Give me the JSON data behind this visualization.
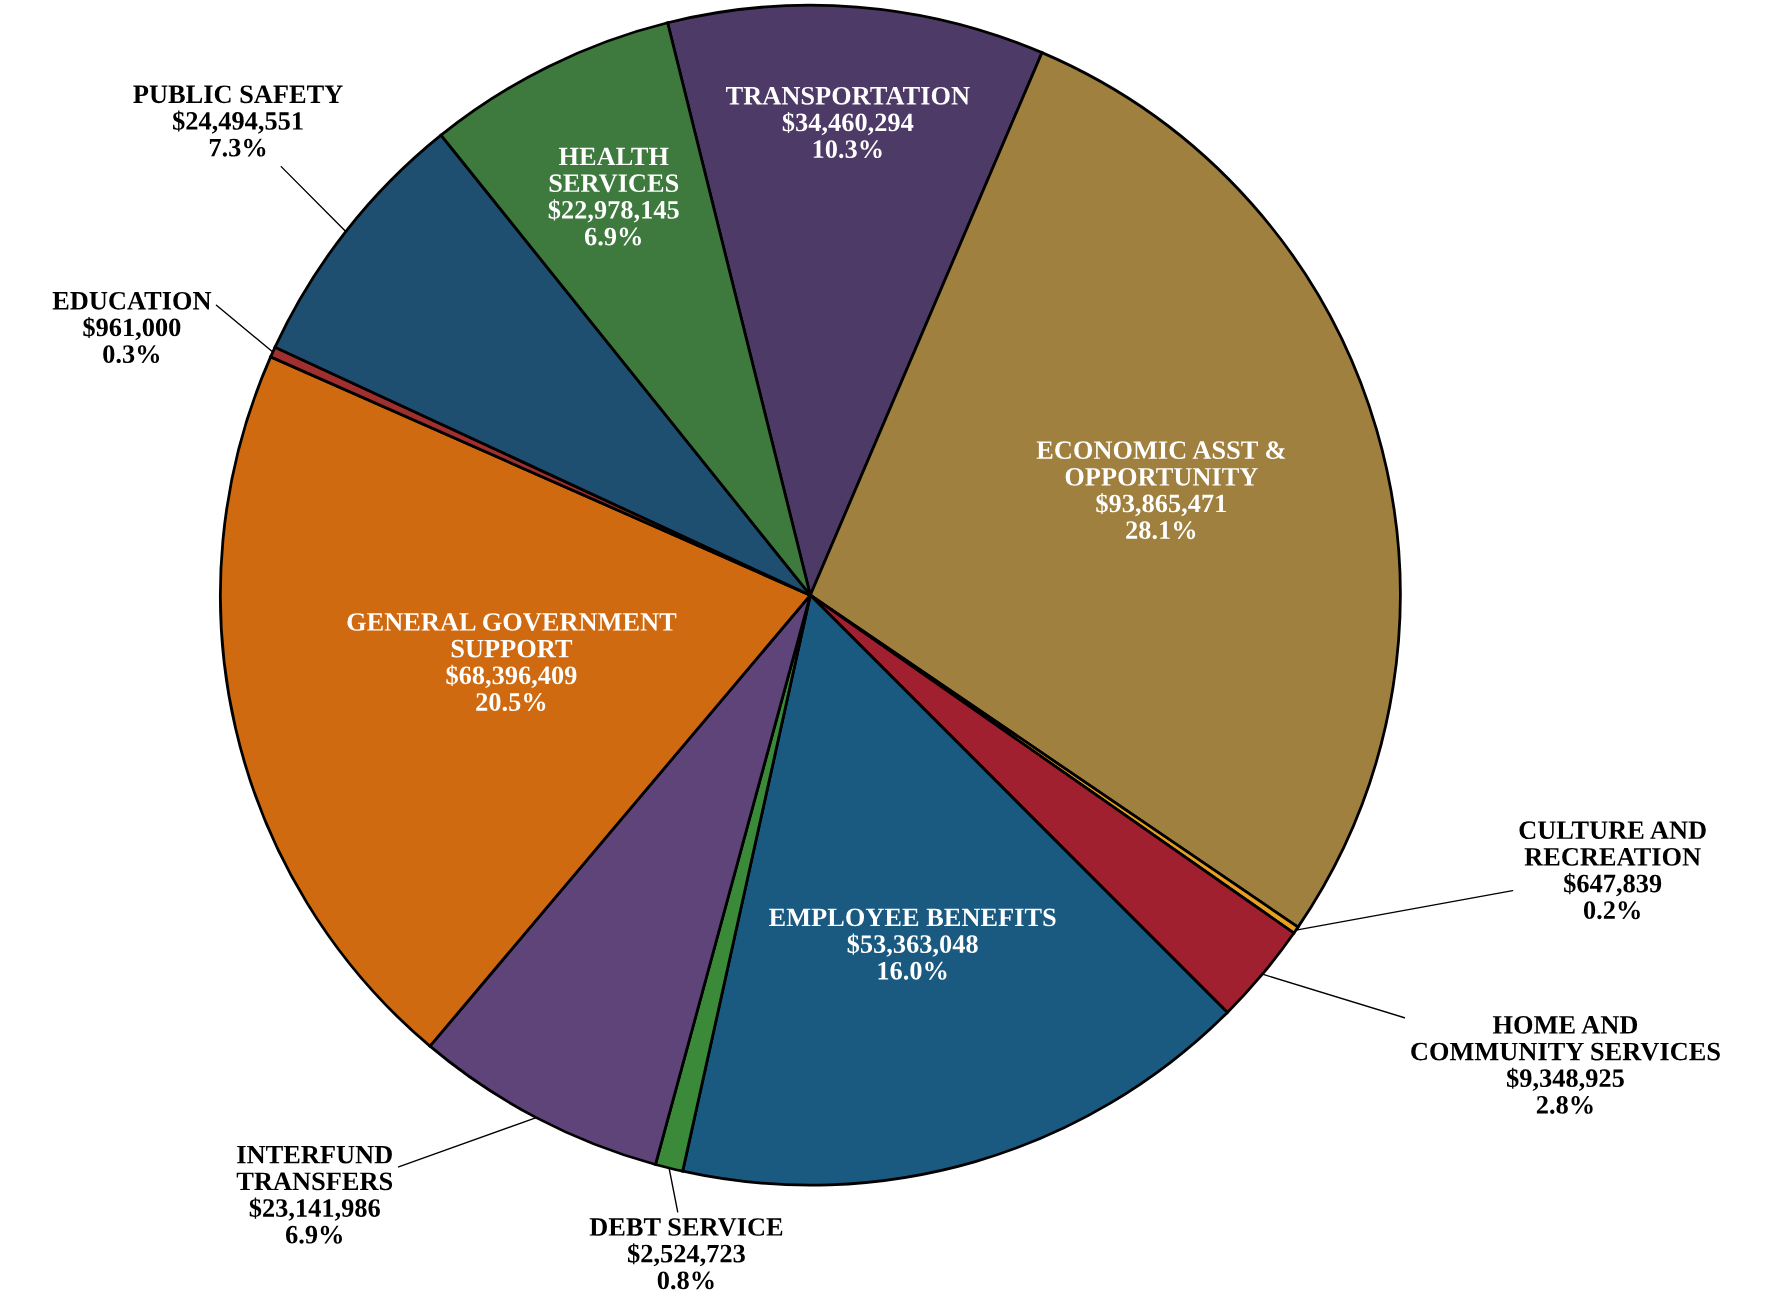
{
  "chart_data": {
    "type": "pie",
    "categories": [
      "TRANSPORTATION",
      "ECONOMIC ASST &\nOPPORTUNITY",
      "CULTURE AND\nRECREATION",
      "HOME AND\nCOMMUNITY SERVICES",
      "EMPLOYEE BENEFITS",
      "DEBT SERVICE",
      "INTERFUND\nTRANSFERS",
      "GENERAL GOVERNMENT\nSUPPORT",
      "EDUCATION",
      "PUBLIC SAFETY",
      "HEALTH\nSERVICES"
    ],
    "values": [
      34460294,
      93865471,
      647839,
      9348925,
      53363048,
      2524723,
      23141986,
      68396409,
      961000,
      24494551,
      22978145
    ],
    "value_labels": [
      "$34,460,294\n10.3%",
      "$93,865,471\n28.1%",
      "$647,839\n0.2%",
      "$9,348,925\n2.8%",
      "$53,363,048\n16.0%",
      "$2,524,723\n0.8%",
      "$23,141,986\n6.9%",
      "$68,396,409\n20.5%",
      "$961,000\n0.3%",
      "$24,494,551\n7.3%",
      "$22,978,145\n6.9%"
    ],
    "colors": [
      "#4e3a66",
      "#a0803f",
      "#e8a020",
      "#a02030",
      "#1a5a80",
      "#3a8a3a",
      "#5e4478",
      "#d06a10",
      "#a03030",
      "#1e4e70",
      "#3e7a3e"
    ]
  }
}
